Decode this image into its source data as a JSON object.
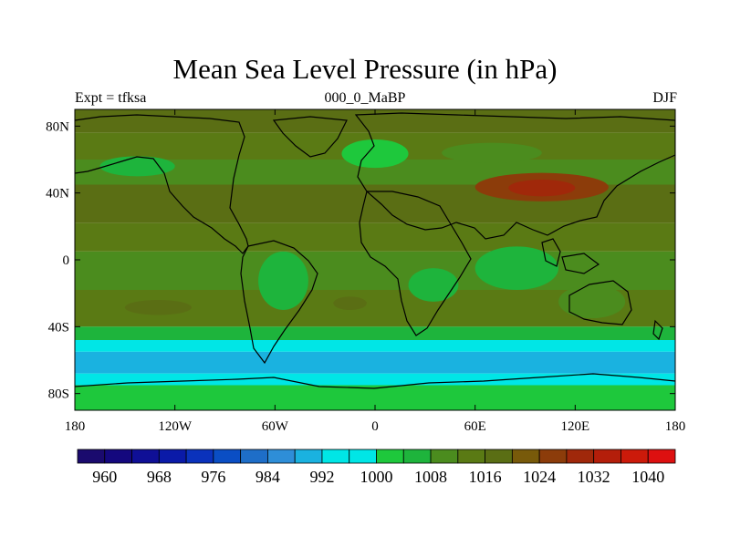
{
  "chart_data": {
    "type": "heatmap",
    "title": "Mean Sea Level Pressure (in hPa)",
    "left_label": "Expt = tfksa",
    "center_label": "000_0_MaBP",
    "right_label": "DJF",
    "x_ticks": [
      {
        "value": -180,
        "label": "180"
      },
      {
        "value": -120,
        "label": "120W"
      },
      {
        "value": -60,
        "label": "60W"
      },
      {
        "value": 0,
        "label": "0"
      },
      {
        "value": 60,
        "label": "60E"
      },
      {
        "value": 120,
        "label": "120E"
      },
      {
        "value": 180,
        "label": "180"
      }
    ],
    "y_ticks": [
      {
        "value": 80,
        "label": "80N"
      },
      {
        "value": 40,
        "label": "40N"
      },
      {
        "value": 0,
        "label": "0"
      },
      {
        "value": -40,
        "label": "40S"
      },
      {
        "value": -80,
        "label": "80S"
      }
    ],
    "xlim": [
      -180,
      180
    ],
    "ylim": [
      -90,
      90
    ],
    "colorbar": {
      "colors": [
        "#1a0a6e",
        "#14087e",
        "#0f0f96",
        "#0a1aa8",
        "#0a32bc",
        "#0a4ec4",
        "#1e6ec8",
        "#2e8ed8",
        "#1ab2e0",
        "#00e6e6",
        "#00e6e6",
        "#1ec83c",
        "#1eb43c",
        "#4b8c1e",
        "#5a7a14",
        "#5a6e14",
        "#785a0a",
        "#8c3c0a",
        "#a0280a",
        "#b41e0a",
        "#cc1a0a",
        "#dd1010"
      ],
      "labels": [
        "960",
        "968",
        "976",
        "984",
        "992",
        "1000",
        "1008",
        "1016",
        "1024",
        "1032",
        "1040"
      ]
    },
    "field_bands": [
      {
        "lat": [
          76,
          90
        ],
        "pressure": 1016
      },
      {
        "lat": [
          60,
          76
        ],
        "pressure": 1012
      },
      {
        "lat": [
          45,
          60
        ],
        "pressure": 1008
      },
      {
        "lat": [
          22,
          45
        ],
        "pressure": 1016
      },
      {
        "lat": [
          5,
          22
        ],
        "pressure": 1012
      },
      {
        "lat": [
          -18,
          5
        ],
        "pressure": 1008
      },
      {
        "lat": [
          -40,
          -18
        ],
        "pressure": 1012
      },
      {
        "lat": [
          -48,
          -40
        ],
        "pressure": 1004
      },
      {
        "lat": [
          -55,
          -48
        ],
        "pressure": 996
      },
      {
        "lat": [
          -68,
          -55
        ],
        "pressure": 988
      },
      {
        "lat": [
          -75,
          -68
        ],
        "pressure": 996
      },
      {
        "lat": [
          -90,
          -75
        ],
        "pressure": 1000
      }
    ],
    "field_patches": [
      {
        "lon": [
          -165,
          -120
        ],
        "lat": [
          50,
          62
        ],
        "pressure": 1004
      },
      {
        "lon": [
          -20,
          20
        ],
        "lat": [
          55,
          72
        ],
        "pressure": 1000
      },
      {
        "lon": [
          40,
          100
        ],
        "lat": [
          58,
          70
        ],
        "pressure": 1008
      },
      {
        "lon": [
          60,
          140
        ],
        "lat": [
          35,
          52
        ],
        "pressure": 1024
      },
      {
        "lon": [
          80,
          120
        ],
        "lat": [
          38,
          48
        ],
        "pressure": 1028
      },
      {
        "lon": [
          -150,
          -110
        ],
        "lat": [
          -33,
          -24
        ],
        "pressure": 1016
      },
      {
        "lon": [
          -25,
          -5
        ],
        "lat": [
          -30,
          -22
        ],
        "pressure": 1016
      },
      {
        "lon": [
          -70,
          -40
        ],
        "lat": [
          -30,
          5
        ],
        "pressure": 1004
      },
      {
        "lon": [
          20,
          50
        ],
        "lat": [
          -25,
          -5
        ],
        "pressure": 1004
      },
      {
        "lon": [
          60,
          110
        ],
        "lat": [
          -18,
          8
        ],
        "pressure": 1004
      },
      {
        "lon": [
          110,
          150
        ],
        "lat": [
          -35,
          -15
        ],
        "pressure": 1008
      }
    ]
  }
}
